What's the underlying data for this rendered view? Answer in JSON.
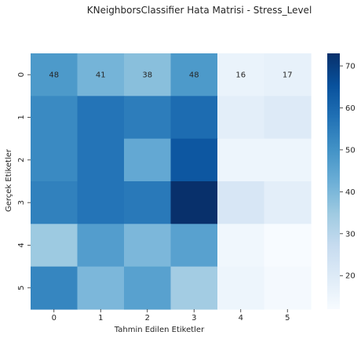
{
  "chart_data": {
    "type": "heatmap",
    "title": "KNeighborsClassifier Hata Matrisi - Stress_Level",
    "xlabel": "Tahmin Edilen Etiketler",
    "ylabel": "Gerçek Etiketler",
    "x_ticks": [
      "0",
      "1",
      "2",
      "3",
      "4",
      "5"
    ],
    "y_ticks": [
      "0",
      "1",
      "2",
      "3",
      "4",
      "5"
    ],
    "values": [
      [
        48,
        41,
        38,
        48,
        16,
        17
      ],
      [
        52,
        57,
        55,
        59,
        18,
        20
      ],
      [
        52,
        57,
        44,
        64,
        15,
        15
      ],
      [
        54,
        57,
        56,
        73,
        22,
        18
      ],
      [
        35,
        47,
        40,
        46,
        14,
        12
      ],
      [
        53,
        40,
        46,
        34,
        15,
        13
      ]
    ],
    "shown_annotations_rows": [
      0
    ],
    "colorbar": {
      "min": 12,
      "max": 73,
      "ticks": [
        20,
        30,
        40,
        50,
        60,
        70
      ]
    },
    "colormap": [
      "#f7fbff",
      "#deebf7",
      "#c6dbef",
      "#9ecae1",
      "#6baed6",
      "#4292c6",
      "#2171b5",
      "#08519c",
      "#08306b"
    ]
  }
}
